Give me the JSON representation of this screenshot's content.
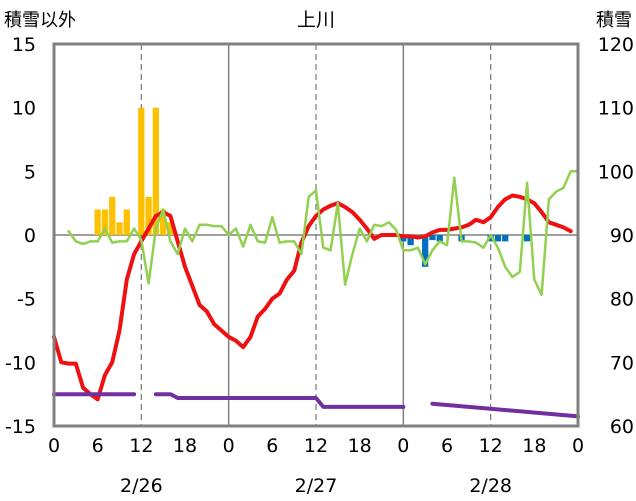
{
  "chart_data": {
    "type": "line",
    "title": "上川",
    "ylabel_left": "積雪以外",
    "ylabel_right": "積雪",
    "ylim_left": [
      -15,
      15
    ],
    "ylim_right": [
      60,
      120
    ],
    "yticks_left": [
      "15",
      "10",
      "5",
      "0",
      "-5",
      "-10",
      "-15"
    ],
    "yticks_right": [
      "120",
      "110",
      "100",
      "90",
      "80",
      "70",
      "60"
    ],
    "xlim_hours": [
      0,
      72
    ],
    "xticks": [
      "0",
      "6",
      "12",
      "18",
      "0",
      "6",
      "12",
      "18",
      "0",
      "6",
      "12",
      "18",
      "0"
    ],
    "dates": [
      "2/26",
      "2/27",
      "2/28"
    ],
    "grid": "dashed vertical every 12h, solid at day boundaries",
    "colors": {
      "temperature": "#ee1111",
      "wind": "#92d050",
      "snow_depth": "#7030a0",
      "precip": "#ffc000",
      "change": "#0070c0",
      "frame": "#808080"
    },
    "series": [
      {
        "key": "temperature",
        "axis": "left",
        "x": [
          0,
          1,
          2,
          3,
          4,
          5,
          6,
          7,
          8,
          9,
          10,
          11,
          12,
          13,
          14,
          15,
          16,
          17,
          18,
          19,
          20,
          21,
          22,
          23,
          24,
          25,
          26,
          27,
          28,
          29,
          30,
          31,
          32,
          33,
          34,
          35,
          36,
          37,
          38,
          39,
          40,
          41,
          42,
          43,
          44,
          45,
          46,
          47,
          48,
          49,
          50,
          51,
          52,
          53,
          54,
          55,
          56,
          57,
          58,
          59,
          60,
          61,
          62,
          63,
          64,
          65,
          66,
          67,
          68,
          69,
          70,
          71
        ],
        "values": [
          -8,
          -10,
          -10.1,
          -10.1,
          -12,
          -12.5,
          -12.9,
          -11,
          -10,
          -7.5,
          -3.5,
          -1.5,
          -0.5,
          0.5,
          1.5,
          1.8,
          1.5,
          -0.5,
          -2.5,
          -4,
          -5.5,
          -6,
          -7,
          -7.5,
          -8,
          -8.3,
          -8.8,
          -8,
          -6.4,
          -5.8,
          -5,
          -4.6,
          -3.5,
          -2.8,
          -0.6,
          0.7,
          1.5,
          2,
          2.3,
          2.5,
          2.2,
          1.8,
          1.2,
          0.5,
          -0.3,
          0,
          0,
          0,
          -0.1,
          -0.1,
          -0.2,
          -0.1,
          0.2,
          0.4,
          0.4,
          0.5,
          0.6,
          0.8,
          1.2,
          1,
          1.4,
          2.2,
          2.8,
          3.1,
          3,
          2.8,
          2.5,
          1.8,
          1,
          0.8,
          0.6,
          0.3
        ]
      },
      {
        "key": "wind",
        "axis": "left",
        "x": [
          2,
          3,
          4,
          5,
          6,
          7,
          8,
          9,
          10,
          11,
          12,
          13,
          14,
          15,
          16,
          17,
          18,
          19,
          20,
          21,
          22,
          23,
          24,
          25,
          26,
          27,
          28,
          29,
          30,
          31,
          32,
          33,
          34,
          35,
          36,
          37,
          38,
          39,
          40,
          41,
          42,
          43,
          44,
          45,
          46,
          47,
          48,
          49,
          50,
          51,
          52,
          53,
          54,
          55,
          56,
          57,
          58,
          59,
          60,
          61,
          62,
          63,
          64,
          65,
          66,
          67,
          68,
          69,
          70,
          71,
          72
        ],
        "values": [
          0.3,
          -0.5,
          -0.7,
          -0.5,
          -0.5,
          0.5,
          -0.6,
          -0.5,
          -0.5,
          0.5,
          -0.4,
          -3.8,
          0.5,
          2,
          -0.5,
          -1.5,
          0.5,
          -0.5,
          0.8,
          0.8,
          0.7,
          0.7,
          0,
          0.5,
          -0.9,
          0.8,
          -0.5,
          -0.6,
          1.4,
          -0.6,
          -0.5,
          -0.5,
          -1.5,
          3,
          3.5,
          -1,
          -1.2,
          2.5,
          -3.9,
          -1.5,
          0.5,
          -0.5,
          0.8,
          0.7,
          1,
          0.4,
          -1.2,
          -1.2,
          -1,
          -2.3,
          -1.2,
          -0.5,
          -0.8,
          4.5,
          -0.5,
          -0.5,
          -0.6,
          -1,
          0,
          -1,
          -2.5,
          -3.3,
          -2.9,
          4.1,
          -3.5,
          -4.7,
          2.8,
          3.4,
          3.7,
          5,
          5
        ]
      },
      {
        "key": "snow_depth",
        "axis": "right",
        "x": [
          0,
          11,
          12,
          14,
          16,
          17,
          24,
          36,
          37,
          48,
          48.5,
          52,
          72
        ],
        "values": [
          65,
          65,
          null,
          65,
          65,
          64.4,
          64.4,
          64.4,
          63,
          63,
          null,
          63.5,
          61.5
        ]
      }
    ],
    "bars": [
      {
        "key": "precip",
        "axis": "left",
        "x": [
          6,
          7,
          8,
          9,
          10,
          11,
          12,
          13,
          14,
          15,
          16
        ],
        "values": [
          2,
          2,
          3,
          1,
          2,
          0,
          10,
          3,
          10,
          2,
          1
        ]
      },
      {
        "key": "change",
        "axis": "left",
        "x": [
          48,
          49,
          50,
          51,
          52,
          53,
          54,
          55,
          56,
          57,
          58,
          59,
          60,
          61,
          62,
          63,
          64,
          65,
          66,
          67,
          68,
          69,
          70,
          71
        ],
        "values": [
          -0.5,
          -0.8,
          0,
          -2.5,
          -0.4,
          -0.5,
          0,
          0,
          -0.5,
          0,
          0,
          0,
          -0.5,
          -0.5,
          -0.5,
          0,
          0,
          -0.5,
          0,
          0,
          0,
          0,
          0,
          0
        ]
      }
    ]
  }
}
